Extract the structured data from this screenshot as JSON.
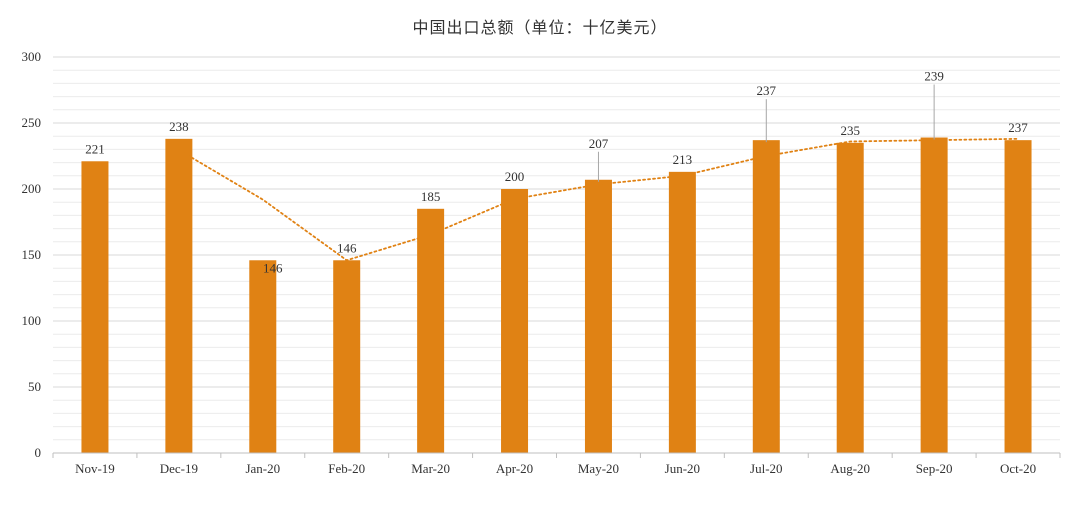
{
  "chart_data": {
    "type": "bar",
    "title": "中国出口总额（单位：十亿美元）",
    "xlabel": "",
    "ylabel": "",
    "categories": [
      "Nov-19",
      "Dec-19",
      "Jan-20",
      "Feb-20",
      "Mar-20",
      "Apr-20",
      "May-20",
      "Jun-20",
      "Jul-20",
      "Aug-20",
      "Sep-20",
      "Oct-20"
    ],
    "series": [
      {
        "values": [
          221,
          238,
          146,
          146,
          185,
          200,
          207,
          213,
          237,
          235,
          239,
          237
        ]
      }
    ],
    "trendline": {
      "type": "moving-average",
      "period": 2,
      "style": "dotted",
      "values": [
        null,
        229.5,
        192,
        146,
        165.5,
        192.5,
        203.5,
        210,
        225,
        236,
        237,
        238
      ]
    },
    "ylim": [
      0,
      300
    ],
    "yticks": [
      0,
      50,
      100,
      150,
      200,
      250,
      300
    ],
    "grid": true,
    "legend": "none",
    "colors": {
      "bar": "#E08214",
      "trendline": "#E08214",
      "grid": "#d9d9d9",
      "text": "#333333"
    }
  }
}
